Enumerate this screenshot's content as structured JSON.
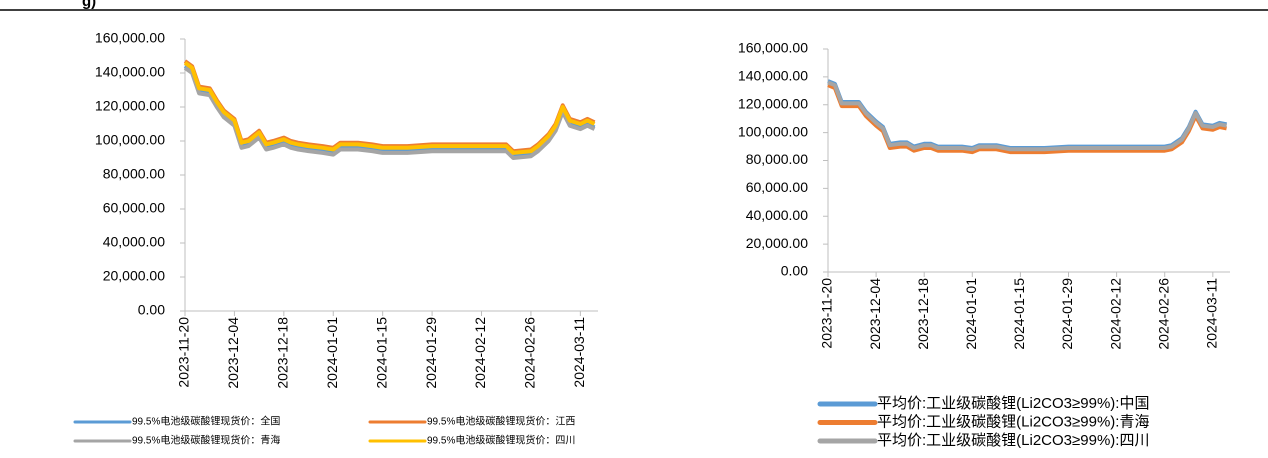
{
  "header_text": "g)",
  "chart_data": [
    {
      "type": "line",
      "x": [
        "2023-11-20",
        "2023-11-22",
        "2023-11-24",
        "2023-11-27",
        "2023-11-29",
        "2023-12-01",
        "2023-12-04",
        "2023-12-06",
        "2023-12-08",
        "2023-12-11",
        "2023-12-13",
        "2023-12-15",
        "2023-12-18",
        "2023-12-20",
        "2023-12-22",
        "2023-12-25",
        "2023-12-29",
        "2024-01-01",
        "2024-01-03",
        "2024-01-08",
        "2024-01-12",
        "2024-01-15",
        "2024-01-19",
        "2024-01-22",
        "2024-01-29",
        "2024-02-05",
        "2024-02-12",
        "2024-02-19",
        "2024-02-21",
        "2024-02-26",
        "2024-02-28",
        "2024-03-02",
        "2024-03-04",
        "2024-03-06",
        "2024-03-08",
        "2024-03-11",
        "2024-03-13",
        "2024-03-15"
      ],
      "xlim": [
        "2023-11-20",
        "2024-03-16"
      ],
      "xticks": [
        "2023-11-20",
        "2023-12-04",
        "2023-12-18",
        "2024-01-01",
        "2024-01-15",
        "2024-01-29",
        "2024-02-12",
        "2024-02-26",
        "2024-03-11"
      ],
      "ylim": [
        0,
        160000
      ],
      "yticks": [
        {
          "value": 0,
          "label": "0.00"
        },
        {
          "value": 20000,
          "label": "20,000.00"
        },
        {
          "value": 40000,
          "label": "40,000.00"
        },
        {
          "value": 60000,
          "label": "60,000.00"
        },
        {
          "value": 80000,
          "label": "80,000.00"
        },
        {
          "value": 100000,
          "label": "100,000.00"
        },
        {
          "value": 120000,
          "label": "120,000.00"
        },
        {
          "value": 140000,
          "label": "140,000.00"
        },
        {
          "value": 160000,
          "label": "160,000.00"
        }
      ],
      "legend": "bottom",
      "series": [
        {
          "name": "99.5%电池级碳酸锂现货价：全国",
          "color": "#5b9bd5",
          "values": [
            144000,
            141000,
            129000,
            128000,
            121000,
            115000,
            110000,
            97000,
            98000,
            103000,
            96000,
            97000,
            99000,
            97000,
            96000,
            95000,
            94000,
            93000,
            96000,
            96000,
            95000,
            94000,
            94000,
            94000,
            95000,
            95000,
            95000,
            95000,
            91000,
            92000,
            95000,
            101000,
            107000,
            118000,
            110000,
            108000,
            110000,
            108000
          ]
        },
        {
          "name": "99.5%电池级碳酸锂现货价：江西",
          "color": "#ed7d31",
          "values": [
            147000,
            144000,
            132000,
            131000,
            124000,
            118000,
            113000,
            100000,
            101000,
            106000,
            99000,
            100000,
            102000,
            100000,
            99000,
            98000,
            97000,
            96000,
            99000,
            99000,
            98000,
            97000,
            97000,
            97000,
            98000,
            98000,
            98000,
            98000,
            94000,
            95000,
            98000,
            104000,
            110000,
            121000,
            113000,
            111000,
            113000,
            111000
          ]
        },
        {
          "name": "99.5%电池级碳酸锂现货价：青海",
          "color": "#a5a5a5",
          "values": [
            143000,
            140000,
            128000,
            127000,
            120000,
            114000,
            109000,
            96000,
            97000,
            102000,
            95000,
            96000,
            98000,
            96000,
            95000,
            94000,
            93000,
            92000,
            95000,
            95000,
            94000,
            93000,
            93000,
            93000,
            94000,
            94000,
            94000,
            94000,
            90000,
            91000,
            94000,
            100000,
            106000,
            117000,
            109000,
            107000,
            109000,
            107000
          ]
        },
        {
          "name": "99.5%电池级碳酸锂现货价：四川",
          "color": "#ffc000",
          "values": [
            146000,
            143000,
            131000,
            130000,
            123000,
            117000,
            112000,
            99000,
            100000,
            105000,
            98000,
            99000,
            101000,
            99000,
            98000,
            97000,
            96000,
            95000,
            98000,
            98000,
            97000,
            96000,
            96000,
            96000,
            97000,
            97000,
            97000,
            97000,
            93000,
            94000,
            97000,
            103000,
            109000,
            120000,
            112000,
            110000,
            112000,
            110000
          ]
        }
      ]
    },
    {
      "type": "line",
      "x": [
        "2023-11-20",
        "2023-11-22",
        "2023-11-24",
        "2023-11-27",
        "2023-11-29",
        "2023-12-01",
        "2023-12-04",
        "2023-12-06",
        "2023-12-08",
        "2023-12-11",
        "2023-12-13",
        "2023-12-15",
        "2023-12-18",
        "2023-12-20",
        "2023-12-22",
        "2023-12-25",
        "2023-12-29",
        "2024-01-01",
        "2024-01-03",
        "2024-01-08",
        "2024-01-12",
        "2024-01-15",
        "2024-01-19",
        "2024-01-22",
        "2024-01-29",
        "2024-02-05",
        "2024-02-12",
        "2024-02-19",
        "2024-02-21",
        "2024-02-26",
        "2024-02-28",
        "2024-03-02",
        "2024-03-04",
        "2024-03-06",
        "2024-03-08",
        "2024-03-11",
        "2024-03-13",
        "2024-03-15"
      ],
      "xlim": [
        "2023-11-20",
        "2024-03-16"
      ],
      "xticks": [
        "2023-11-20",
        "2023-12-04",
        "2023-12-18",
        "2024-01-01",
        "2024-01-15",
        "2024-01-29",
        "2024-02-12",
        "2024-02-26",
        "2024-03-11"
      ],
      "ylim": [
        0,
        160000
      ],
      "yticks": [
        {
          "value": 0,
          "label": "0.00"
        },
        {
          "value": 20000,
          "label": "20,000.00"
        },
        {
          "value": 40000,
          "label": "40,000.00"
        },
        {
          "value": 60000,
          "label": "60,000.00"
        },
        {
          "value": 80000,
          "label": "80,000.00"
        },
        {
          "value": 100000,
          "label": "100,000.00"
        },
        {
          "value": 120000,
          "label": "120,000.00"
        },
        {
          "value": 140000,
          "label": "140,000.00"
        },
        {
          "value": 160000,
          "label": "160,000.00"
        }
      ],
      "legend": "bottom",
      "series": [
        {
          "name": "平均价:工业级碳酸锂(Li2CO3≥99%):中国",
          "color": "#5b9bd5",
          "values": [
            137000,
            135000,
            122000,
            122000,
            122000,
            115000,
            108000,
            104000,
            92000,
            93000,
            93000,
            90000,
            92000,
            92000,
            90000,
            90000,
            90000,
            89000,
            91000,
            91000,
            89000,
            89000,
            89000,
            89000,
            90000,
            90000,
            90000,
            90000,
            90000,
            90000,
            91000,
            96000,
            104000,
            115000,
            106000,
            105000,
            107000,
            106000
          ]
        },
        {
          "name": "平均价:工业级碳酸锂(Li2CO3≥99%):青海",
          "color": "#ed7d31",
          "values": [
            134000,
            132000,
            119000,
            119000,
            119000,
            112000,
            105000,
            101000,
            89000,
            90000,
            90000,
            87000,
            89000,
            89000,
            87000,
            87000,
            87000,
            86000,
            88000,
            88000,
            86000,
            86000,
            86000,
            86000,
            87000,
            87000,
            87000,
            87000,
            87000,
            87000,
            88000,
            93000,
            101000,
            112000,
            103000,
            102000,
            104000,
            103000
          ]
        },
        {
          "name": "平均价:工业级碳酸锂(Li2CO3≥99%):四川",
          "color": "#a5a5a5",
          "values": [
            136000,
            134000,
            121000,
            121000,
            121000,
            114000,
            107000,
            103000,
            91000,
            92000,
            92000,
            89000,
            91000,
            91000,
            89000,
            89000,
            89000,
            88000,
            90000,
            90000,
            88000,
            88000,
            88000,
            88000,
            89000,
            89000,
            89000,
            89000,
            89000,
            89000,
            90000,
            95000,
            103000,
            114000,
            105000,
            104000,
            106000,
            105000
          ]
        }
      ]
    }
  ]
}
